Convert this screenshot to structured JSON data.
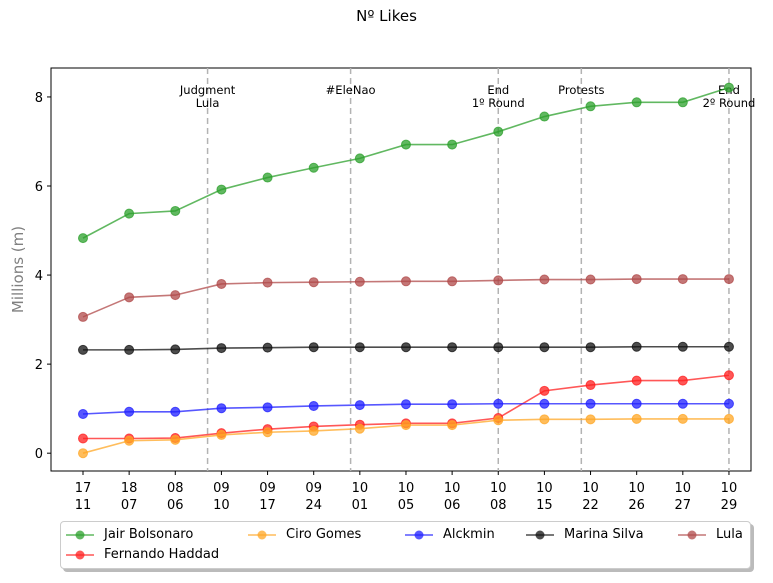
{
  "chart_data": {
    "type": "line",
    "title": "Nº Likes",
    "ylabel": "Millions (m)",
    "xlabel": "",
    "ylim": [
      -0.4,
      8.65
    ],
    "yticks": [
      0,
      2,
      4,
      6,
      8
    ],
    "grid": false,
    "legend_position": "bottom",
    "categories": [
      [
        "17",
        "11"
      ],
      [
        "18",
        "07"
      ],
      [
        "08",
        "06"
      ],
      [
        "09",
        "10"
      ],
      [
        "09",
        "17"
      ],
      [
        "09",
        "24"
      ],
      [
        "10",
        "01"
      ],
      [
        "10",
        "05"
      ],
      [
        "10",
        "06"
      ],
      [
        "10",
        "08"
      ],
      [
        "10",
        "15"
      ],
      [
        "10",
        "22"
      ],
      [
        "10",
        "26"
      ],
      [
        "10",
        "27"
      ],
      [
        "10",
        "29"
      ]
    ],
    "series": [
      {
        "name": "Jair Bolsonaro",
        "color": "#2ca02c",
        "values": [
          4.83,
          5.38,
          5.44,
          5.92,
          6.19,
          6.41,
          6.62,
          6.93,
          6.93,
          7.22,
          7.56,
          7.79,
          7.88,
          7.88,
          8.21
        ]
      },
      {
        "name": "Fernando Haddad",
        "color": "#ff1f1f",
        "values": [
          0.33,
          0.33,
          0.34,
          0.45,
          0.54,
          0.6,
          0.64,
          0.67,
          0.67,
          0.79,
          1.4,
          1.53,
          1.63,
          1.63,
          1.75
        ]
      },
      {
        "name": "Ciro Gomes",
        "color": "#ffa726",
        "values": [
          0.0,
          0.28,
          0.3,
          0.41,
          0.47,
          0.5,
          0.55,
          0.63,
          0.63,
          0.74,
          0.76,
          0.76,
          0.77,
          0.77,
          0.77
        ]
      },
      {
        "name": "Alckmin",
        "color": "#1f1fff",
        "values": [
          0.88,
          0.93,
          0.93,
          1.01,
          1.03,
          1.06,
          1.08,
          1.1,
          1.1,
          1.11,
          1.11,
          1.11,
          1.11,
          1.11,
          1.11
        ]
      },
      {
        "name": "Marina Silva",
        "color": "#111111",
        "values": [
          2.32,
          2.32,
          2.33,
          2.36,
          2.37,
          2.38,
          2.38,
          2.38,
          2.38,
          2.38,
          2.38,
          2.38,
          2.39,
          2.39,
          2.39
        ]
      },
      {
        "name": "Lula",
        "color": "#b04a4a",
        "values": [
          3.06,
          3.5,
          3.55,
          3.8,
          3.83,
          3.84,
          3.85,
          3.86,
          3.86,
          3.88,
          3.9,
          3.9,
          3.91,
          3.91,
          3.91
        ]
      }
    ],
    "annotations": [
      {
        "x": 2.7,
        "label": [
          "Judgment",
          "Lula"
        ]
      },
      {
        "x": 5.8,
        "label": [
          "#EleNao"
        ]
      },
      {
        "x": 9.0,
        "label": [
          "End",
          "1º Round"
        ]
      },
      {
        "x": 10.8,
        "label": [
          "Protests"
        ]
      },
      {
        "x": 14.0,
        "label": [
          "End",
          "2º Round"
        ]
      }
    ]
  }
}
